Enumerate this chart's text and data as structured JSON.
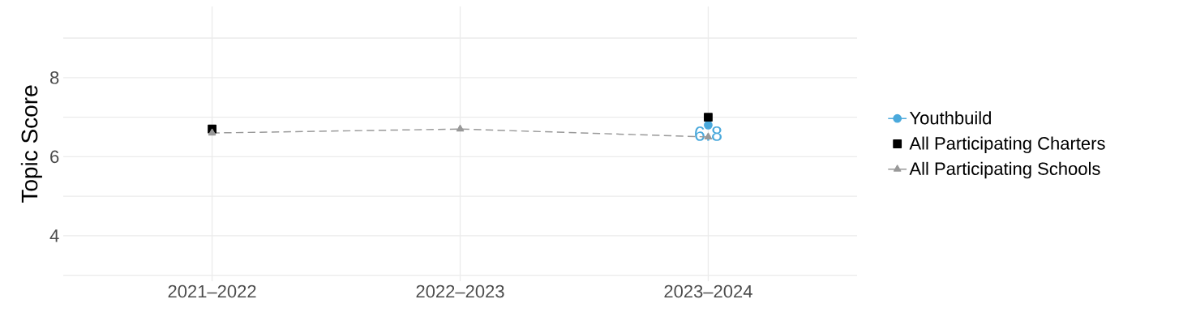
{
  "chart_data": {
    "type": "line",
    "ylabel": "Topic Score",
    "categories": [
      "2021–2022",
      "2022–2023",
      "2023–2024"
    ],
    "series": [
      {
        "name": "Youthbuild",
        "color": "#4aa9dc",
        "values": [
          null,
          null,
          6.8
        ],
        "marker": "circle",
        "line_style": "solid",
        "value_labels": [
          null,
          null,
          "6.8"
        ]
      },
      {
        "name": "All Participating Charters",
        "type": "scatter",
        "color": "#000000",
        "values": [
          6.7,
          null,
          7.0
        ],
        "marker": "square",
        "line_style": "solid"
      },
      {
        "name": "All Participating Schools",
        "color": "#999999",
        "values": [
          6.6,
          6.7,
          6.5
        ],
        "marker": "triangle",
        "line_style": "dashed"
      }
    ],
    "ylim": [
      2.85,
      9.8
    ],
    "yticks": [
      {
        "value": 3,
        "label": null
      },
      4,
      {
        "value": 5,
        "label": null
      },
      6,
      {
        "value": 7,
        "label": null
      },
      8,
      {
        "value": 9,
        "label": null
      }
    ],
    "grid": true,
    "legend": "right"
  }
}
